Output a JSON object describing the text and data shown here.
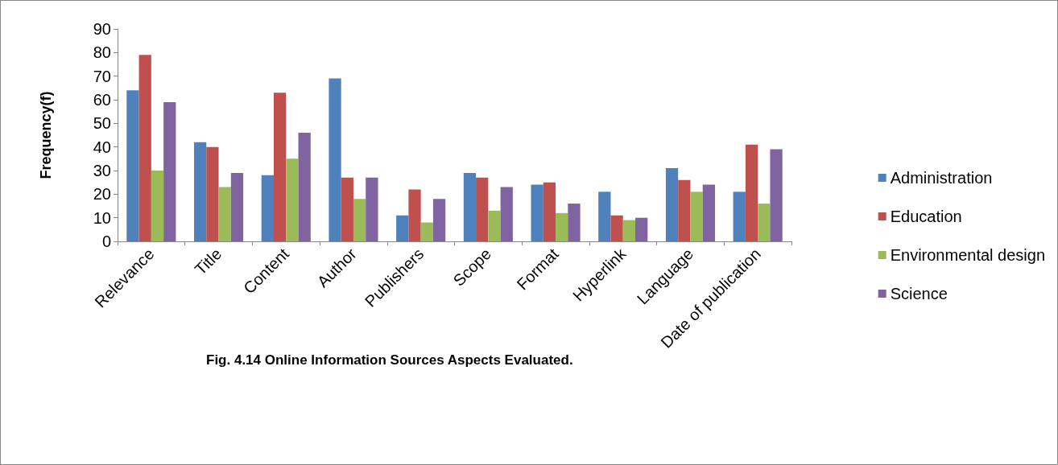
{
  "chart_data": {
    "type": "bar",
    "title": "Fig. 4.14 Online Information Sources Aspects Evaluated.",
    "ylabel": "Frequency(f)",
    "categories": [
      "Relevance",
      "Title",
      "Content",
      "Author",
      "Publishers",
      "Scope",
      "Format",
      "Hyperlink",
      "Language",
      "Date of publication"
    ],
    "series": [
      {
        "name": "Administration",
        "color": "#4f81bd",
        "values": [
          64,
          42,
          28,
          69,
          11,
          29,
          24,
          21,
          31,
          21
        ]
      },
      {
        "name": "Education",
        "color": "#c0504d",
        "values": [
          79,
          40,
          63,
          27,
          22,
          27,
          25,
          11,
          26,
          41
        ]
      },
      {
        "name": "Environmental design",
        "color": "#9bbb59",
        "values": [
          30,
          23,
          35,
          18,
          8,
          13,
          12,
          9,
          21,
          16
        ]
      },
      {
        "name": "Science",
        "color": "#8064a2",
        "values": [
          59,
          29,
          46,
          27,
          18,
          23,
          16,
          10,
          24,
          39
        ]
      }
    ],
    "ylim": [
      0,
      90
    ],
    "yticks": [
      0,
      10,
      20,
      30,
      40,
      50,
      60,
      70,
      80,
      90
    ],
    "grid": false,
    "legend": "right"
  }
}
